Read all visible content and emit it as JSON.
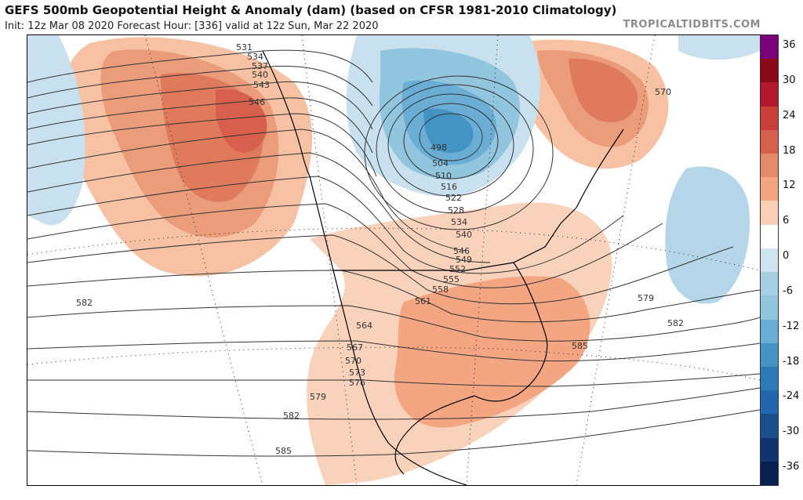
{
  "header": {
    "title": "GEFS 500mb Geopotential Height & Anomaly (dam) (based on CFSR 1981-2010 Climatology)",
    "subtitle": "Init: 12z Mar 08 2020   Forecast Hour: [336]   valid at 12z Sun, Mar 22 2020",
    "brand": "TROPICALTIDBITS.COM"
  },
  "colorbar": {
    "labels": [
      "36",
      "30",
      "24",
      "18",
      "12",
      "6",
      "0",
      "-6",
      "-12",
      "-18",
      "-24",
      "-30",
      "-36"
    ],
    "colors": [
      "#7a0177",
      "#8b0a17",
      "#b2182b",
      "#c9403a",
      "#d6604d",
      "#e48a6a",
      "#f4a582",
      "#fbd0b5",
      "#ffffff",
      "#d1e5f0",
      "#a6cfe3",
      "#92c5de",
      "#6aaed6",
      "#4393c3",
      "#2c7bb6",
      "#2166ac",
      "#1b4f8c",
      "#0f3470",
      "#08204f"
    ]
  },
  "map": {
    "contour_labels": [
      "531",
      "534",
      "537",
      "540",
      "543",
      "546",
      "570",
      "498",
      "504",
      "510",
      "516",
      "522",
      "528",
      "534",
      "540",
      "546",
      "549",
      "552",
      "555",
      "558",
      "561",
      "564",
      "567",
      "570",
      "573",
      "576",
      "579",
      "582",
      "585",
      "579",
      "582",
      "585",
      "582",
      "579",
      "570"
    ]
  }
}
